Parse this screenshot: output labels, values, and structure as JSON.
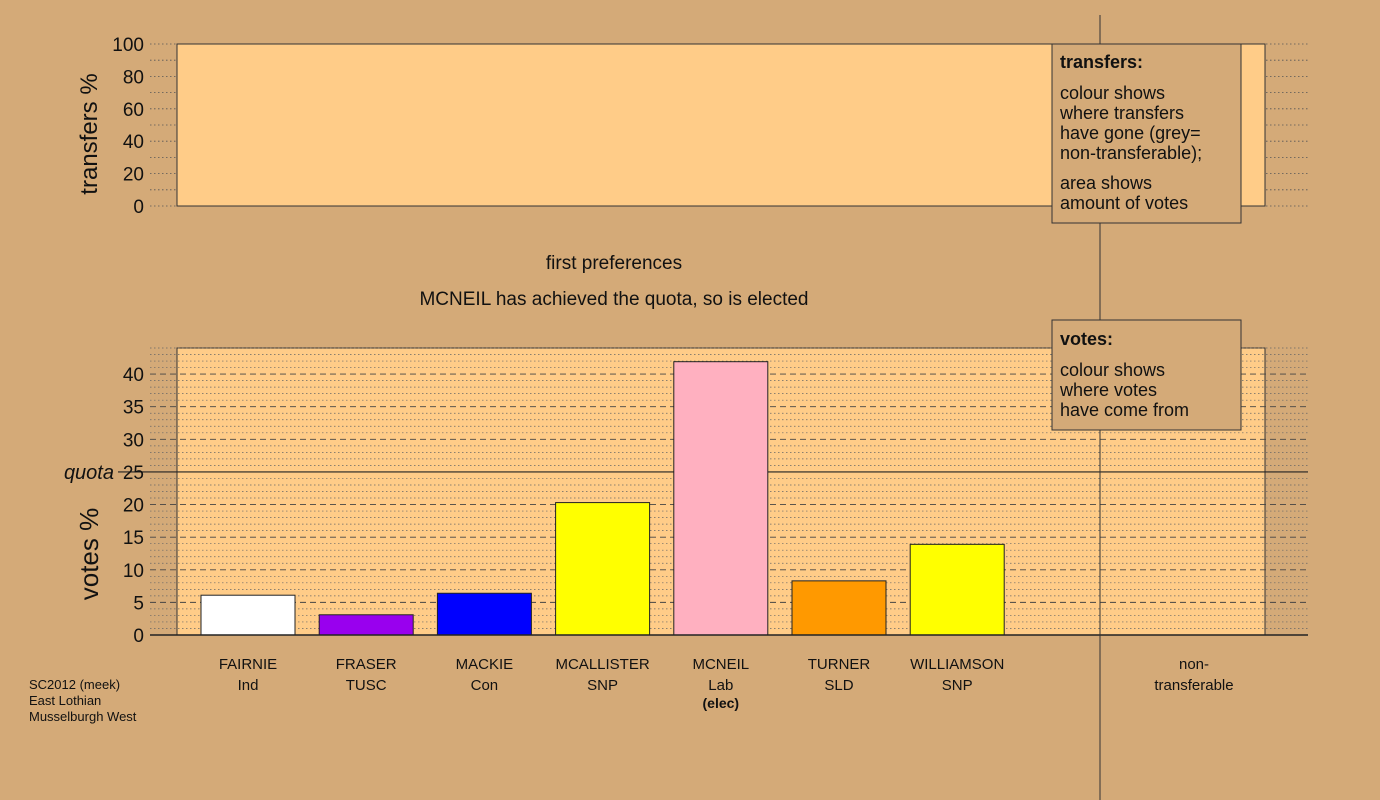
{
  "colors": {
    "background": "#d4aa78",
    "plot_area": "#ffcc88",
    "grid": "#555555",
    "box_fill": "#d4aa78",
    "axis": "#222222"
  },
  "footer": {
    "line1": "SC2012 (meek)",
    "line2": "East Lothian",
    "line3": "Musselburgh West"
  },
  "chart_data": [
    {
      "type": "bar",
      "title": "first preferences",
      "subtitle": "MCNEIL has achieved the quota, so is elected",
      "ylabel": "votes %",
      "ylim": [
        0,
        44
      ],
      "yticks": [
        0,
        5,
        10,
        15,
        20,
        25,
        30,
        35,
        40
      ],
      "quota": {
        "label": "quota",
        "value": 25
      },
      "categories": [
        {
          "name": "FAIRNIE",
          "party": "Ind",
          "note": ""
        },
        {
          "name": "FRASER",
          "party": "TUSC",
          "note": ""
        },
        {
          "name": "MACKIE",
          "party": "Con",
          "note": ""
        },
        {
          "name": "MCALLISTER",
          "party": "SNP",
          "note": ""
        },
        {
          "name": "MCNEIL",
          "party": "Lab",
          "note": "(elec)"
        },
        {
          "name": "TURNER",
          "party": "SLD",
          "note": ""
        },
        {
          "name": "WILLIAMSON",
          "party": "SNP",
          "note": ""
        }
      ],
      "values": [
        6.1,
        3.1,
        6.4,
        20.3,
        41.9,
        8.3,
        13.9
      ],
      "bar_colors": [
        "#ffffff",
        "#9900ee",
        "#0000ff",
        "#ffff00",
        "#ffb0c0",
        "#ff9900",
        "#ffff00"
      ],
      "extra_category": {
        "line1": "non-",
        "line2": "transferable"
      },
      "legend": {
        "title": "votes:",
        "lines": [
          "colour shows",
          "where votes",
          "have come from"
        ]
      }
    },
    {
      "type": "bar",
      "title": "",
      "ylabel": "transfers %",
      "ylim": [
        0,
        100
      ],
      "yticks": [
        0,
        20,
        40,
        60,
        80,
        100
      ],
      "values": [],
      "legend": {
        "title": "transfers:",
        "para1": [
          "colour shows",
          "where transfers",
          "have gone (grey=",
          "non-transferable);"
        ],
        "para2": [
          "area shows",
          "amount of votes"
        ]
      }
    }
  ]
}
